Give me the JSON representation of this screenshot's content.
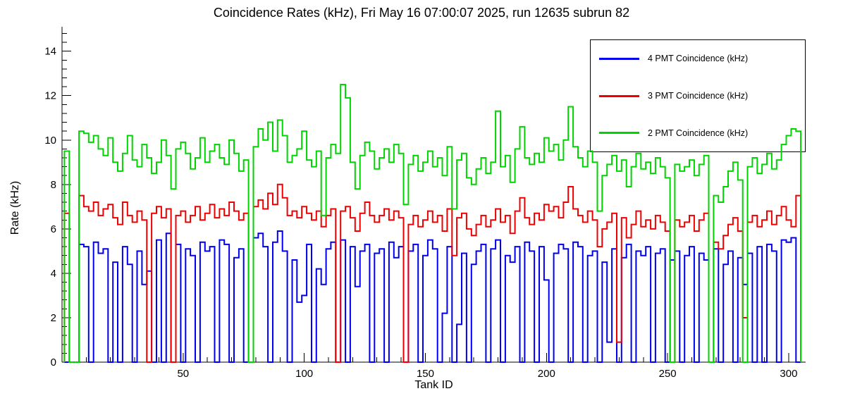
{
  "chart_data": {
    "type": "line",
    "style": "step-histogram",
    "title": "Coincidence Rates (kHz), Fri May 16 07:00:07 2025, run 12635 subrun 82",
    "xlabel": "Tank ID",
    "ylabel": "Rate (kHz)",
    "xlim": [
      0,
      307
    ],
    "ylim": [
      0,
      15.1
    ],
    "x_ticks": [
      50,
      100,
      150,
      200,
      250,
      300
    ],
    "x_minor_step": 10,
    "y_ticks": [
      0,
      2,
      4,
      6,
      8,
      10,
      12,
      14
    ],
    "y_minor_step": 0.4,
    "bin_start": 1,
    "bin_width": 2,
    "grid": false,
    "legend_position": "top-right",
    "series": [
      {
        "name": "4 PMT Coincidence (kHz)",
        "color": "#0000ee",
        "values": [
          0,
          0,
          0,
          5.3,
          5.2,
          0,
          5.4,
          4.9,
          5.1,
          0,
          4.5,
          0,
          5.2,
          4.4,
          0,
          5.0,
          3.5,
          4.1,
          0,
          5.5,
          0,
          5.8,
          0,
          5.3,
          0,
          5.1,
          4.8,
          0,
          5.4,
          5.0,
          5.2,
          0,
          5.5,
          5.3,
          0,
          4.7,
          5.1,
          0,
          0,
          5.6,
          5.8,
          5.2,
          0,
          5.4,
          5.9,
          5.0,
          0,
          4.6,
          2.7,
          3.0,
          5.3,
          0,
          4.2,
          3.5,
          5.1,
          5.4,
          0,
          5.5,
          0,
          5.2,
          3.4,
          5.0,
          5.3,
          0,
          4.9,
          5.1,
          0,
          5.4,
          4.7,
          5.2,
          0,
          5.0,
          5.3,
          0,
          4.8,
          5.5,
          5.1,
          0,
          2.2,
          5.2,
          0,
          1.7,
          4.9,
          0,
          4.4,
          5.0,
          5.3,
          0,
          5.1,
          5.5,
          0,
          4.8,
          4.5,
          5.2,
          0,
          5.4,
          5.0,
          0,
          5.2,
          3.7,
          0,
          4.9,
          5.3,
          5.1,
          0,
          5.4,
          5.2,
          0,
          4.8,
          5.0,
          0,
          4.5,
          0.9,
          5.1,
          0,
          4.7,
          5.3,
          0,
          5.0,
          4.8,
          5.2,
          0,
          4.9,
          5.1,
          0,
          4.6,
          5.0,
          0,
          4.8,
          5.2,
          0,
          4.9,
          4.6,
          0,
          5.1,
          0,
          4.4,
          5.0,
          0,
          4.7,
          3.5,
          4.9,
          0,
          5.2,
          0,
          5.3,
          5.0,
          0,
          5.5,
          5.4,
          5.6,
          0
        ]
      },
      {
        "name": "3 PMT Coincidence (kHz)",
        "color": "#ee0000",
        "values": [
          6.7,
          0,
          0,
          7.5,
          7.0,
          6.8,
          7.2,
          6.6,
          6.9,
          7.1,
          6.5,
          6.2,
          7.2,
          6.6,
          6.3,
          6.8,
          6.4,
          0,
          6.7,
          7.0,
          6.5,
          6.9,
          0,
          6.6,
          6.8,
          6.3,
          6.6,
          7.0,
          6.4,
          6.7,
          7.1,
          6.5,
          6.9,
          6.6,
          7.2,
          6.8,
          6.4,
          6.7,
          0,
          7.0,
          7.3,
          6.9,
          7.6,
          7.1,
          8.0,
          7.4,
          6.6,
          6.8,
          6.5,
          7.0,
          6.7,
          6.4,
          6.8,
          6.1,
          6.6,
          6.9,
          0,
          6.8,
          7.0,
          6.5,
          5.9,
          6.7,
          7.2,
          6.6,
          6.3,
          6.6,
          6.9,
          6.4,
          6.8,
          6.5,
          0,
          6.2,
          6.6,
          6.1,
          6.4,
          6.8,
          6.3,
          6.6,
          5.9,
          6.9,
          4.8,
          6.5,
          6.7,
          6.0,
          5.7,
          6.2,
          6.6,
          6.1,
          6.4,
          6.9,
          6.3,
          6.6,
          5.8,
          6.8,
          7.4,
          6.5,
          6.2,
          6.7,
          6.4,
          7.1,
          6.8,
          7.0,
          6.5,
          7.2,
          7.9,
          6.9,
          6.6,
          6.3,
          6.8,
          6.4,
          5.2,
          6.0,
          6.3,
          6.7,
          0.9,
          6.5,
          5.6,
          6.2,
          6.8,
          6.1,
          6.4,
          6.0,
          6.6,
          6.3,
          5.9,
          0,
          6.4,
          6.1,
          6.3,
          6.6,
          5.9,
          6.4,
          6.7,
          0,
          5.4,
          5.1,
          5.7,
          6.2,
          6.5,
          5.9,
          2.0,
          6.3,
          6.6,
          6.1,
          6.4,
          6.8,
          6.2,
          6.6,
          7.0,
          6.4,
          6.1,
          7.5
        ]
      },
      {
        "name": "2 PMT Coincidence (kHz)",
        "color": "#00d400",
        "values": [
          9.5,
          0,
          0,
          10.4,
          10.3,
          9.9,
          10.2,
          9.6,
          9.3,
          10.1,
          9.0,
          8.6,
          9.4,
          10.2,
          9.1,
          8.8,
          9.8,
          9.2,
          8.5,
          9.0,
          10.0,
          9.3,
          7.8,
          9.6,
          9.9,
          9.4,
          8.7,
          9.2,
          10.1,
          9.0,
          9.5,
          9.8,
          9.2,
          8.9,
          10.0,
          9.4,
          8.6,
          9.1,
          0,
          9.7,
          10.5,
          10.0,
          10.8,
          9.5,
          10.9,
          10.2,
          9.0,
          9.3,
          9.6,
          10.4,
          9.1,
          8.8,
          9.5,
          6.6,
          9.2,
          9.8,
          9.4,
          12.5,
          11.9,
          9.0,
          7.8,
          9.3,
          9.9,
          9.5,
          8.7,
          9.2,
          9.6,
          9.0,
          9.8,
          9.4,
          7.1,
          8.9,
          9.3,
          8.6,
          9.0,
          9.5,
          8.8,
          9.2,
          8.4,
          9.7,
          6.9,
          9.1,
          9.4,
          8.3,
          8.0,
          8.7,
          9.2,
          8.5,
          9.0,
          11.3,
          8.8,
          9.3,
          8.1,
          9.6,
          10.6,
          9.2,
          8.9,
          9.4,
          9.0,
          10.1,
          9.5,
          9.8,
          9.1,
          10.0,
          11.5,
          9.7,
          9.2,
          8.8,
          9.5,
          9.0,
          6.8,
          8.4,
          8.9,
          9.3,
          8.6,
          9.1,
          7.9,
          8.8,
          9.4,
          8.7,
          9.0,
          8.5,
          9.2,
          8.8,
          8.3,
          0,
          8.9,
          8.6,
          8.8,
          9.1,
          8.4,
          8.9,
          9.3,
          0,
          7.5,
          7.2,
          7.9,
          8.6,
          9.0,
          8.2,
          0,
          8.8,
          9.2,
          8.5,
          8.9,
          9.4,
          8.7,
          9.1,
          9.8,
          10.2,
          10.5,
          10.4
        ]
      }
    ]
  }
}
